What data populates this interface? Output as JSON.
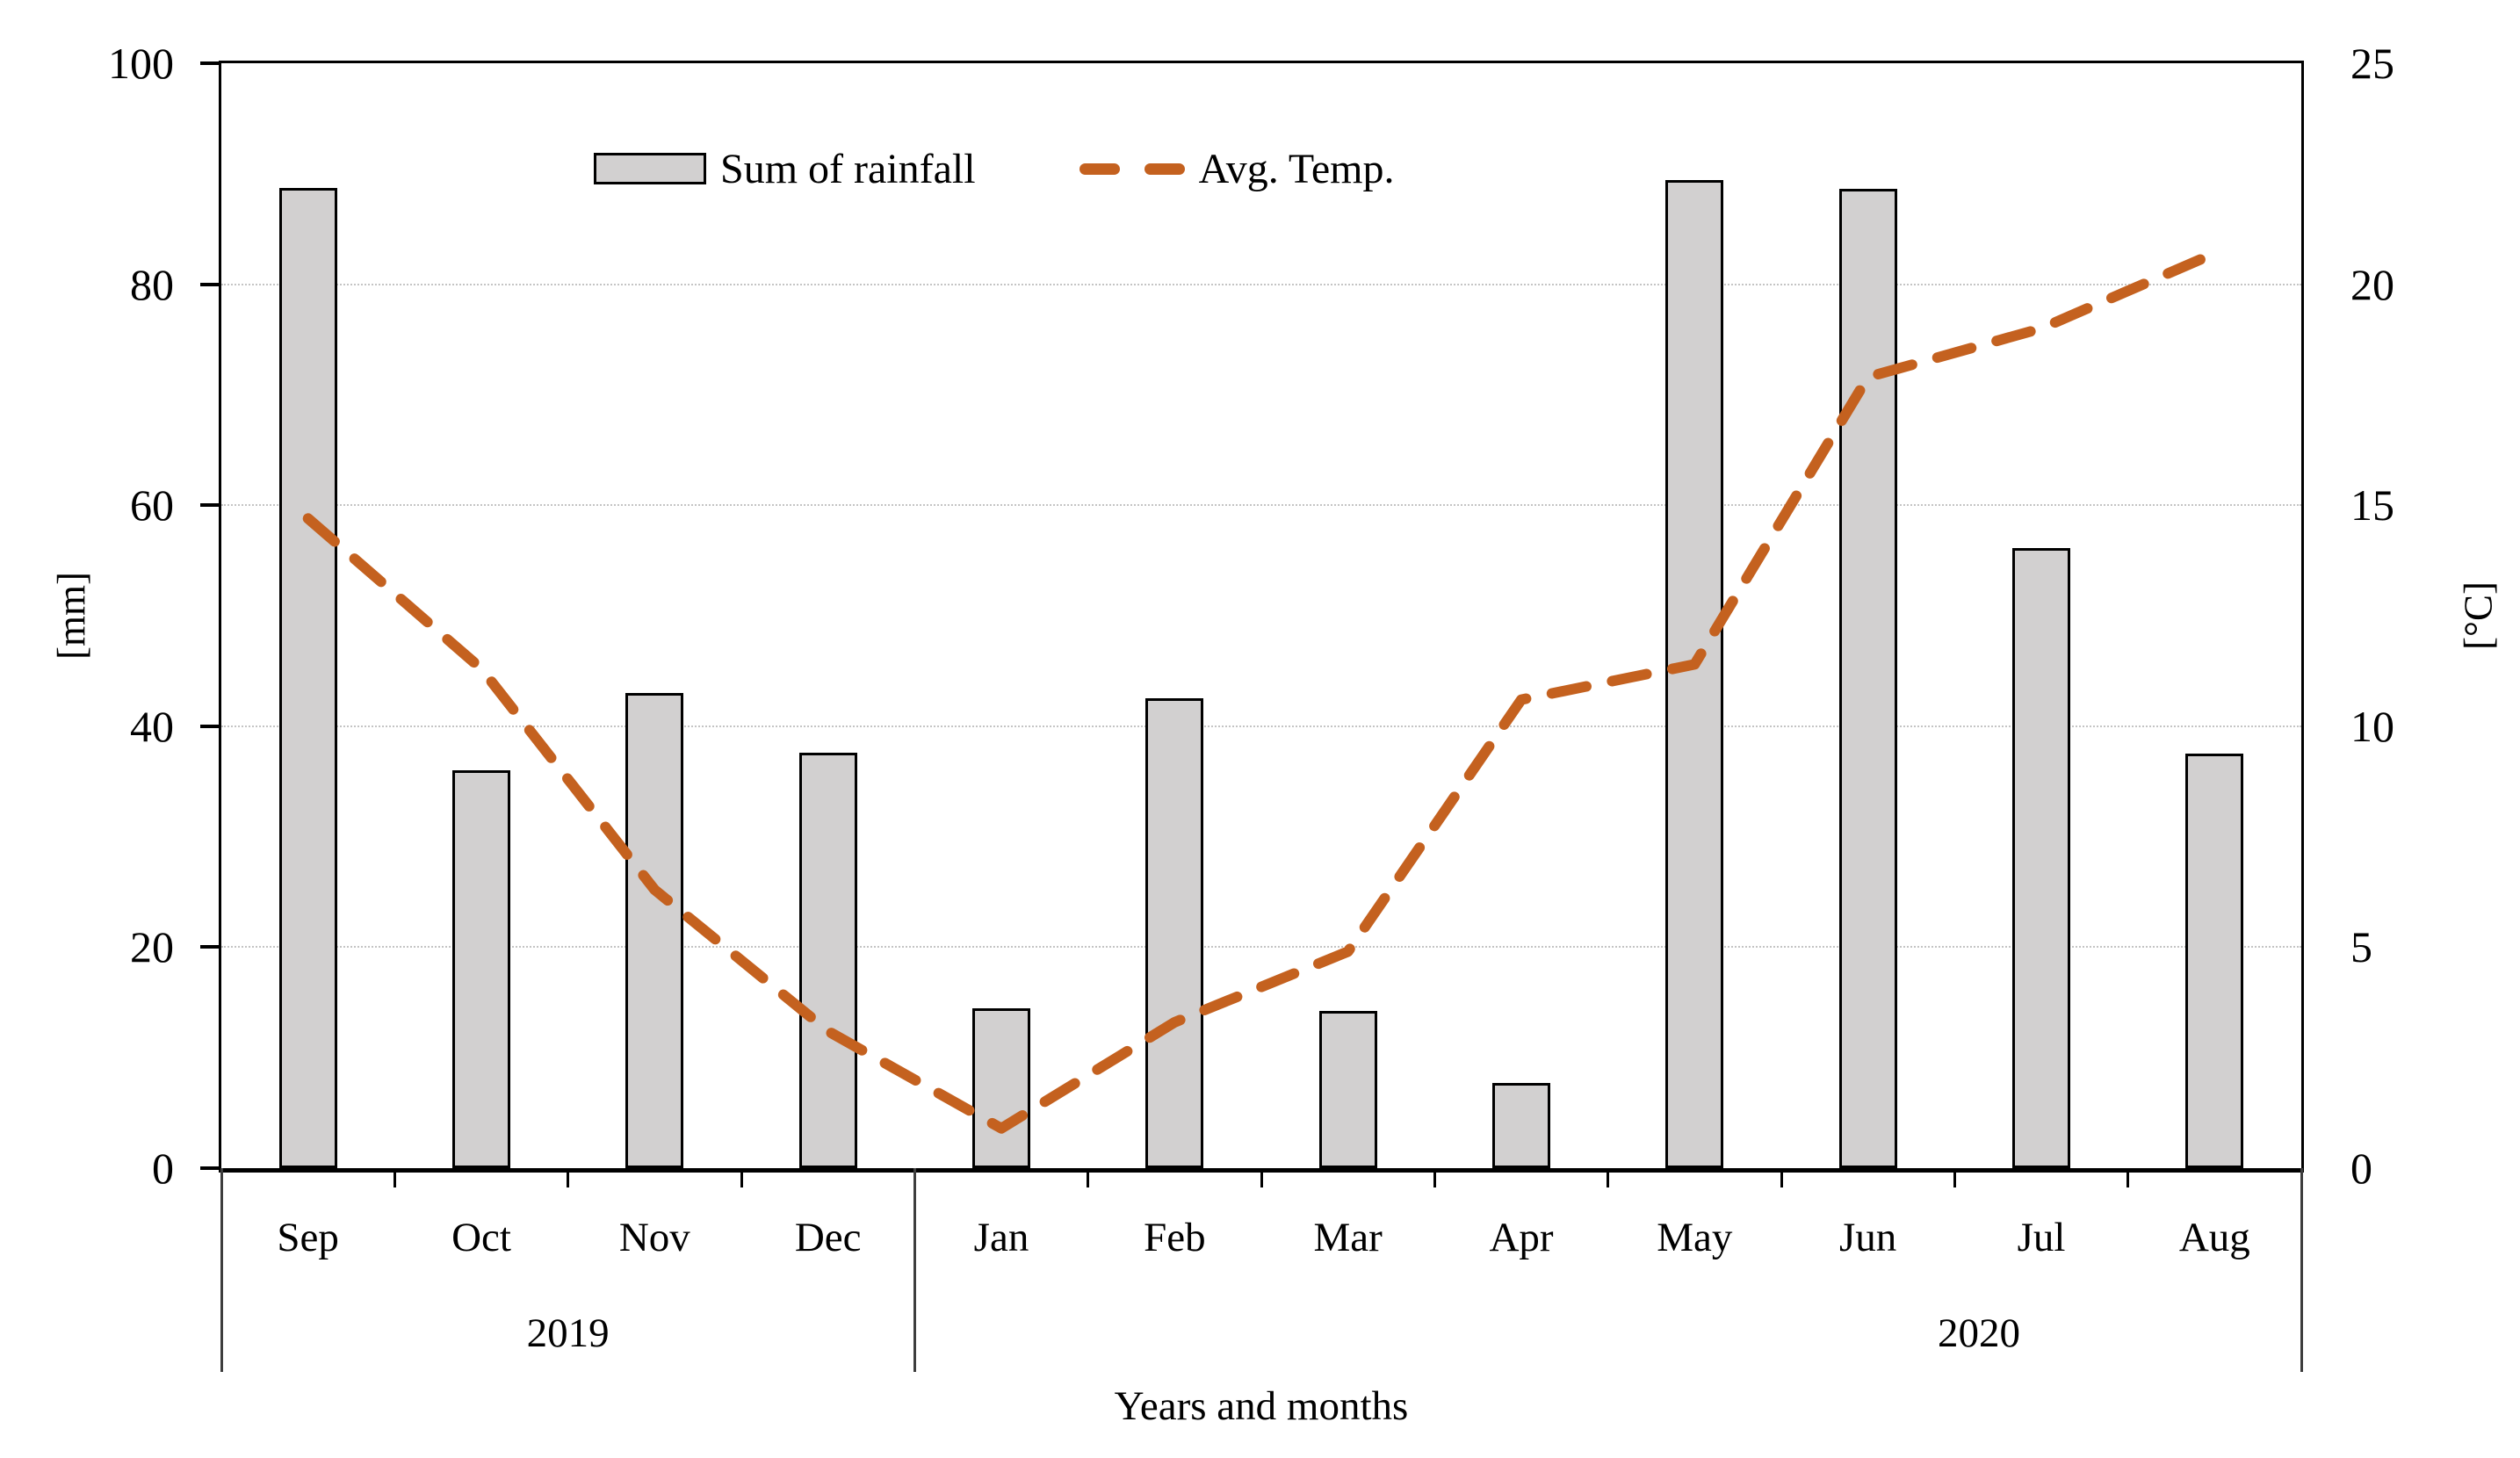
{
  "chart_data": {
    "type": "bar+line combo",
    "categories": [
      "Sep",
      "Oct",
      "Nov",
      "Dec",
      "Jan",
      "Feb",
      "Mar",
      "Apr",
      "May",
      "Jun",
      "Jul",
      "Aug"
    ],
    "category_years": [
      {
        "label": "2019",
        "months": [
          "Sep",
          "Oct",
          "Nov",
          "Dec"
        ]
      },
      {
        "label": "2020",
        "months": [
          "Jan",
          "Feb",
          "Mar",
          "Apr",
          "May",
          "Jun",
          "Jul",
          "Aug"
        ]
      }
    ],
    "series": [
      {
        "name": "Sum of rainfall",
        "type": "bar",
        "axis": "left",
        "unit": "mm",
        "values": [
          88.7,
          36.0,
          43.0,
          37.6,
          14.5,
          42.5,
          14.2,
          7.7,
          89.4,
          88.6,
          56.1,
          37.5
        ]
      },
      {
        "name": "Avg. Temp.",
        "type": "dashed-line",
        "axis": "right",
        "unit": "°C",
        "values": [
          14.7,
          11.3,
          6.3,
          3.1,
          0.9,
          3.3,
          4.9,
          10.6,
          11.4,
          17.9,
          19.0,
          20.7
        ]
      }
    ],
    "left_axis": {
      "title": "[mm]",
      "ticks": [
        0,
        20,
        40,
        60,
        80,
        100
      ],
      "range": [
        0,
        100
      ]
    },
    "right_axis": {
      "title": "[°C]",
      "ticks": [
        0,
        5,
        10,
        15,
        20,
        25
      ],
      "range": [
        0,
        25
      ]
    },
    "x_axis": {
      "title": "Years and months"
    },
    "grid": "horizontal-dotted",
    "legend_position": "top-center",
    "colors": {
      "bar_fill": "#d2d0d0",
      "bar_border": "#000000",
      "line": "#c4611f",
      "grid": "#c4c4c4",
      "axis": "#000000",
      "text": "#000000"
    }
  }
}
